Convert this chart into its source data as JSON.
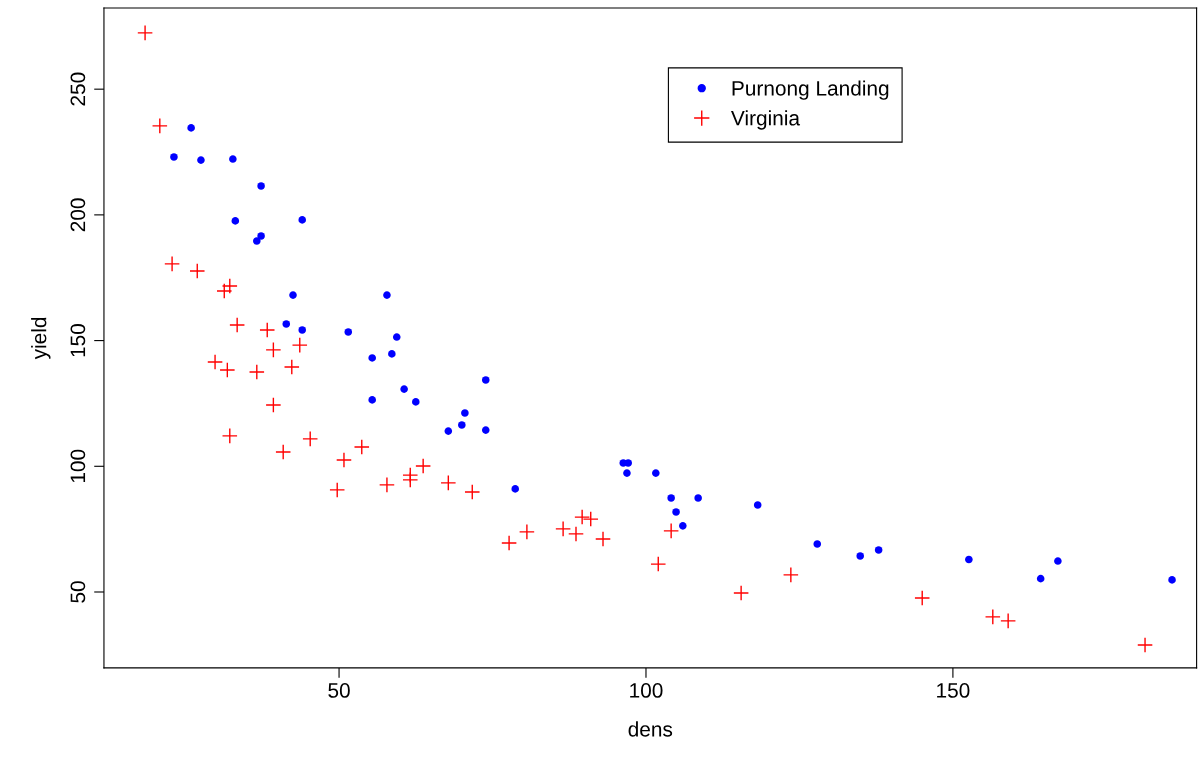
{
  "chart_data": {
    "type": "scatter",
    "xlabel": "dens",
    "ylabel": "yield",
    "xlim": [
      11.7,
      189.7
    ],
    "ylim": [
      19.8,
      282.3
    ],
    "xticks": [
      50,
      100,
      150
    ],
    "yticks": [
      50,
      100,
      150,
      200,
      250
    ],
    "grid": false,
    "legend": "top right",
    "series": [
      {
        "name": "Purnong Landing",
        "color": "#0000ff",
        "marker": "circle",
        "x": [
          23.1,
          25.9,
          27.5,
          32.7,
          33.1,
          37.3,
          36.6,
          37.3,
          44.0,
          42.5,
          41.4,
          44.0,
          51.5,
          57.8,
          55.4,
          59.4,
          58.6,
          55.4,
          60.6,
          62.5,
          73.9,
          70.5,
          70.0,
          67.8,
          73.9,
          78.7,
          96.3,
          97.1,
          96.9,
          101.6,
          104.1,
          104.9,
          106.0,
          108.5,
          118.2,
          127.9,
          134.9,
          137.9,
          152.6,
          164.3,
          167.1,
          185.7
        ],
        "values": [
          223.0,
          234.6,
          221.8,
          222.2,
          197.6,
          211.5,
          189.6,
          191.6,
          198.0,
          168.1,
          156.6,
          154.2,
          153.4,
          168.1,
          143.1,
          151.4,
          144.7,
          126.4,
          130.7,
          125.6,
          134.3,
          121.2,
          116.4,
          114.0,
          114.4,
          91.0,
          101.3,
          101.3,
          97.3,
          97.3,
          87.4,
          81.8,
          76.3,
          87.4,
          84.6,
          69.1,
          64.3,
          66.7,
          62.9,
          55.3,
          62.3,
          54.8
        ]
      },
      {
        "name": "Virginia",
        "color": "#ff0000",
        "marker": "cross",
        "x": [
          18.4,
          20.8,
          22.8,
          26.9,
          31.3,
          32.2,
          29.8,
          31.8,
          33.4,
          32.2,
          38.3,
          39.3,
          36.6,
          42.3,
          39.3,
          43.6,
          40.9,
          45.3,
          49.7,
          50.8,
          53.7,
          57.8,
          61.6,
          61.6,
          63.7,
          67.8,
          71.7,
          77.7,
          80.6,
          86.5,
          88.6,
          89.6,
          91.0,
          93.0,
          102.0,
          104.1,
          115.5,
          123.6,
          145.0,
          156.5,
          159.0,
          181.3
        ],
        "values": [
          272.4,
          235.4,
          180.5,
          177.7,
          169.7,
          171.7,
          141.5,
          138.3,
          156.2,
          112.1,
          154.2,
          146.3,
          137.5,
          139.5,
          124.4,
          148.2,
          105.7,
          110.9,
          90.6,
          102.5,
          107.7,
          92.6,
          96.5,
          94.6,
          100.1,
          93.4,
          89.8,
          69.5,
          73.9,
          75.1,
          73.1,
          79.8,
          79.0,
          71.1,
          61.1,
          74.3,
          49.6,
          56.8,
          47.6,
          40.1,
          38.5,
          28.9
        ]
      }
    ]
  }
}
